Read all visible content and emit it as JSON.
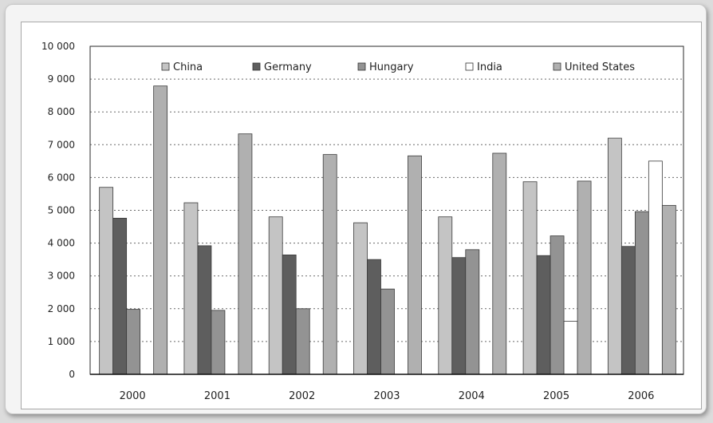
{
  "chart_data": {
    "type": "bar",
    "categories": [
      "2000",
      "2001",
      "2002",
      "2003",
      "2004",
      "2005",
      "2006"
    ],
    "series": [
      {
        "name": "China",
        "color": "#c4c4c4",
        "values": [
          5700,
          5230,
          4800,
          4620,
          4800,
          5870,
          7200
        ]
      },
      {
        "name": "Germany",
        "color": "#5e5e5e",
        "values": [
          4760,
          3920,
          3640,
          3500,
          3560,
          3620,
          3900
        ]
      },
      {
        "name": "Hungary",
        "color": "#939393",
        "values": [
          1980,
          1950,
          2000,
          2600,
          3800,
          4220,
          4960
        ]
      },
      {
        "name": "India",
        "color": "#ffffff",
        "values": [
          null,
          null,
          null,
          null,
          null,
          1620,
          6500
        ]
      },
      {
        "name": "United States",
        "color": "#b0b0b0",
        "values": [
          8790,
          7330,
          6700,
          6660,
          6740,
          5890,
          5150
        ]
      }
    ],
    "yticks": [
      "0",
      "1 000",
      "2 000",
      "3 000",
      "4 000",
      "5 000",
      "6 000",
      "7 000",
      "8 000",
      "9 000",
      "10 000"
    ],
    "ylim": [
      0,
      10000
    ],
    "grid": true,
    "gridStyle": "dotted horizontal",
    "legend": "top, inside plot",
    "title": "",
    "xlabel": "",
    "ylabel": ""
  }
}
